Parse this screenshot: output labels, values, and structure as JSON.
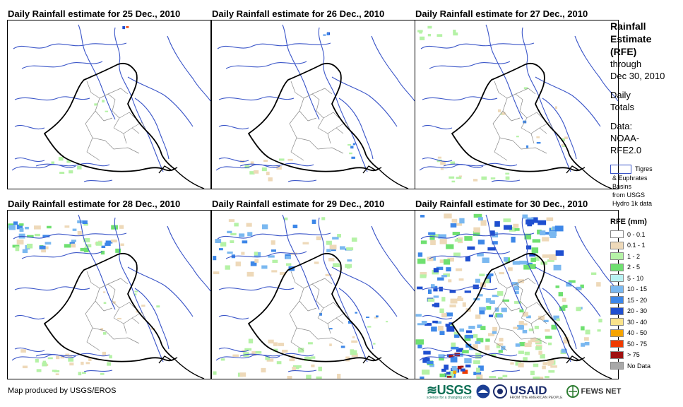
{
  "panels": [
    {
      "title": "Daily Rainfall estimate for 25 Dec., 2010"
    },
    {
      "title": "Daily Rainfall estimate for 26 Dec., 2010"
    },
    {
      "title": "Daily Rainfall estimate for 27 Dec., 2010"
    },
    {
      "title": "Daily Rainfall estimate for 28 Dec., 2010"
    },
    {
      "title": "Daily Rainfall estimate for 29 Dec., 2010"
    },
    {
      "title": "Daily Rainfall estimate for 30 Dec., 2010"
    }
  ],
  "sidebar": {
    "title_lines": [
      "Rainfall",
      "Estimate",
      "(RFE)"
    ],
    "through": "through",
    "through_date": "Dec 30, 2010",
    "daily": "Daily",
    "totals": "Totals",
    "data_label": "Data:",
    "data_source_1": "NOAA-",
    "data_source_2": "RFE2.0",
    "basin_label_1": "Tigres",
    "basin_label_2": "& Euphrates",
    "basin_label_3": "Basins",
    "basin_label_4": "from USGS",
    "basin_label_5": "Hydro 1k data",
    "basin_color": "#3a55c8"
  },
  "legend": {
    "title": "RFE (mm)",
    "items": [
      {
        "label": "0 - 0.1",
        "color": "#ffffff"
      },
      {
        "label": "0.1 - 1",
        "color": "#eed9b9"
      },
      {
        "label": "1 - 2",
        "color": "#b5f2a6"
      },
      {
        "label": "2 - 5",
        "color": "#6fe070"
      },
      {
        "label": "5 - 10",
        "color": "#b9f2f2"
      },
      {
        "label": "10 - 15",
        "color": "#7ab8f0"
      },
      {
        "label": "15 - 20",
        "color": "#3d87e8"
      },
      {
        "label": "20 - 30",
        "color": "#1f4fd0"
      },
      {
        "label": "30 - 40",
        "color": "#fbe38a"
      },
      {
        "label": "40 - 50",
        "color": "#f5a400"
      },
      {
        "label": "50 - 75",
        "color": "#ef3b00"
      },
      {
        "label": "> 75",
        "color": "#a01010"
      },
      {
        "label": "No Data",
        "color": "#a8a8a8"
      }
    ]
  },
  "footer": {
    "credit": "Map produced by USGS/EROS",
    "logo_usgs": "≋USGS",
    "logo_usgs_tag": "science for a changing world",
    "logo_usaid": "USAID",
    "logo_usaid_tag": "FROM THE AMERICAN PEOPLE",
    "logo_fews": "FEWS NET"
  }
}
